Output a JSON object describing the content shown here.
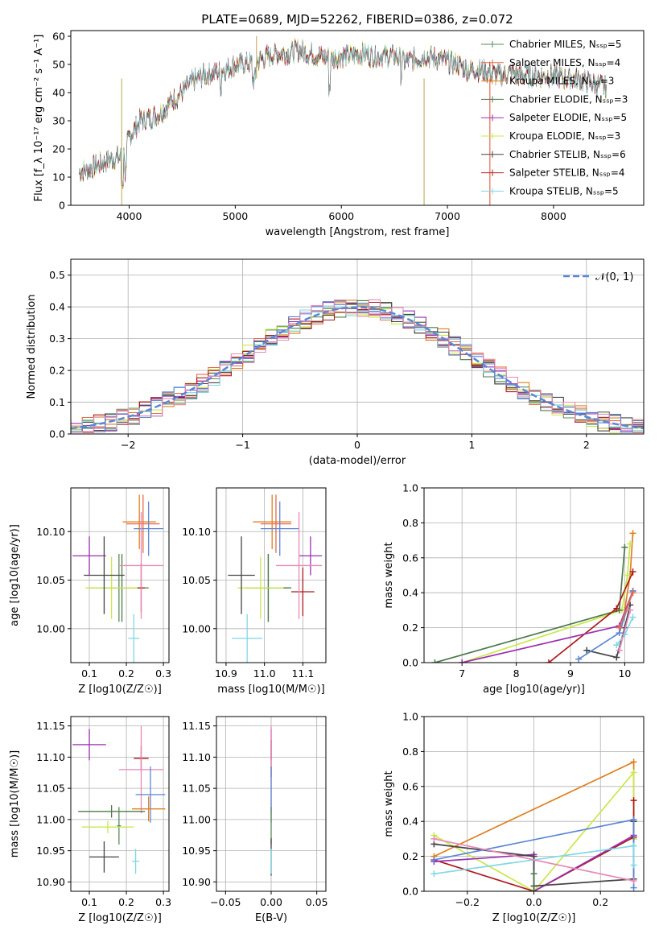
{
  "figure_title": "PLATE=0689, MJD=52262, FIBERID=0386, z=0.072",
  "colors": {
    "Chabrier MILES": "#5c8a5a",
    "Salpeter MILES": "#e8684a",
    "Kroupa MILES": "#e07f1f",
    "Chabrier ELODIE": "#4c7a4c",
    "Salpeter ELODIE": "#9b2fb0",
    "Kroupa ELODIE": "#c9e84a",
    "Chabrier STELIB": "#444444",
    "Salpeter STELIB": "#b01818",
    "Kroupa STELIB": "#7fd8e6",
    "blue": "#5b86d6",
    "pink": "#e68ab8"
  },
  "chart_data": [
    {
      "type": "line",
      "title": "PLATE=0689, MJD=52262, FIBERID=0386, z=0.072",
      "xlabel": "wavelength [Angstrom, rest frame]",
      "ylabel": "Flux [f_λ 10⁻¹⁷ erg cm⁻² s⁻¹ A⁻¹]",
      "xlim": [
        3450,
        8850
      ],
      "ylim": [
        0,
        62
      ],
      "xticks": [
        4000,
        5000,
        6000,
        7000,
        8000
      ],
      "yticks": [
        0,
        10,
        20,
        30,
        40,
        50,
        60
      ],
      "grid": false,
      "legend_position": "top-right",
      "legend": [
        "Chabrier MILES, N_SSP=5",
        "Salpeter MILES, N_SSP=4",
        "Kroupa MILES, N_SSP=3",
        "Chabrier ELODIE, N_SSP=3",
        "Salpeter ELODIE, N_SSP=5",
        "Kroupa ELODIE, N_SSP=3",
        "Chabrier STELIB, N_SSP=6",
        "Salpeter STELIB, N_SSP=4",
        "Kroupa STELIB, N_SSP=5"
      ],
      "spectrum_envelope": {
        "x": [
          3530,
          3700,
          3800,
          3900,
          3950,
          4000,
          4100,
          4200,
          4300,
          4400,
          4500,
          4600,
          4700,
          4800,
          4900,
          5000,
          5100,
          5200,
          5300,
          5400,
          5500,
          5600,
          5700,
          5800,
          5900,
          6000,
          6100,
          6200,
          6300,
          6400,
          6500,
          6600,
          6700,
          6800,
          6900,
          7000,
          7100,
          7200,
          7300,
          7400,
          7500,
          7600,
          7700,
          7800,
          7900,
          8000,
          8100,
          8200,
          8300,
          8400,
          8500
        ],
        "y": [
          12,
          14,
          16,
          17,
          18,
          24,
          30,
          31,
          33,
          37,
          40,
          44,
          46,
          47,
          48,
          50,
          50,
          51,
          53,
          54,
          54,
          55,
          54,
          53,
          52,
          53,
          53,
          54,
          53,
          53,
          53,
          51,
          52,
          53,
          52,
          51,
          50,
          48,
          48,
          47,
          46,
          47,
          46,
          46,
          46,
          46,
          45,
          45,
          44,
          43,
          42
        ]
      }
    },
    {
      "type": "histogram",
      "xlabel": "(data-model)/error",
      "ylabel": "Normed distribution",
      "xlim": [
        -2.5,
        2.5
      ],
      "ylim": [
        0,
        0.55
      ],
      "xticks": [
        -2,
        -1,
        0,
        1,
        2
      ],
      "yticks": [
        0.0,
        0.1,
        0.2,
        0.3,
        0.4,
        0.5
      ],
      "grid": true,
      "legend": [
        "𝒩(0, 1)"
      ],
      "legend_position": "top-right",
      "reference_curve": "normal(0,1) pdf"
    },
    {
      "type": "scatter",
      "xlabel": "Z [log10(Z/Z☉)]",
      "ylabel": "age  [log10(age/yr)]",
      "xlim": [
        0.05,
        0.315
      ],
      "ylim": [
        9.965,
        10.145
      ],
      "xticks": [
        0.1,
        0.2,
        0.3
      ],
      "yticks": [
        10.0,
        10.05,
        10.1
      ],
      "grid": true,
      "points": [
        {
          "model": "Chabrier MILES",
          "x": 0.18,
          "y": 10.042,
          "xerr": 0.08,
          "yerr": 0.035
        },
        {
          "model": "Salpeter MILES",
          "x": 0.245,
          "y": 10.108,
          "xerr": 0.045,
          "yerr": 0.03
        },
        {
          "model": "Kroupa MILES",
          "x": 0.235,
          "y": 10.11,
          "xerr": 0.045,
          "yerr": 0.028
        },
        {
          "model": "Chabrier ELODIE",
          "x": 0.188,
          "y": 10.042,
          "xerr": 0.06,
          "yerr": 0.035
        },
        {
          "model": "Salpeter ELODIE",
          "x": 0.1,
          "y": 10.075,
          "xerr": 0.045,
          "yerr": 0.02
        },
        {
          "model": "Kroupa ELODIE",
          "x": 0.16,
          "y": 10.042,
          "xerr": 0.07,
          "yerr": 0.032
        },
        {
          "model": "Chabrier STELIB",
          "x": 0.14,
          "y": 10.055,
          "xerr": 0.055,
          "yerr": 0.04
        },
        {
          "model": "Salpeter STELIB",
          "x": 0.24,
          "y": 10.042,
          "xerr": 0.01,
          "yerr": 0.025
        },
        {
          "model": "Kroupa STELIB",
          "x": 0.22,
          "y": 9.99,
          "xerr": 0.015,
          "yerr": 0.025
        },
        {
          "model": "blue",
          "x": 0.26,
          "y": 10.103,
          "xerr": 0.04,
          "yerr": 0.028
        },
        {
          "model": "pink",
          "x": 0.24,
          "y": 10.065,
          "xerr": 0.06,
          "yerr": 0.055
        }
      ]
    },
    {
      "type": "scatter",
      "xlabel": "mass [log10(M/M☉)]",
      "ylabel": "",
      "xlim": [
        10.875,
        11.16
      ],
      "ylim": [
        9.965,
        10.145
      ],
      "xticks": [
        10.9,
        11.0,
        11.1
      ],
      "yticks": [
        10.0,
        10.05,
        10.1
      ],
      "grid": true,
      "points": [
        {
          "model": "Chabrier MILES",
          "x": 11.01,
          "y": 10.042,
          "xerr": 0.05,
          "yerr": 0.035
        },
        {
          "model": "Salpeter MILES",
          "x": 11.03,
          "y": 10.108,
          "xerr": 0.04,
          "yerr": 0.03
        },
        {
          "model": "Kroupa MILES",
          "x": 11.02,
          "y": 10.11,
          "xerr": 0.05,
          "yerr": 0.028
        },
        {
          "model": "Chabrier ELODIE",
          "x": 11.01,
          "y": 10.042,
          "xerr": 0.06,
          "yerr": 0.035
        },
        {
          "model": "Salpeter ELODIE",
          "x": 11.12,
          "y": 10.075,
          "xerr": 0.03,
          "yerr": 0.02
        },
        {
          "model": "Kroupa ELODIE",
          "x": 10.99,
          "y": 10.042,
          "xerr": 0.06,
          "yerr": 0.032
        },
        {
          "model": "Chabrier STELIB",
          "x": 10.94,
          "y": 10.055,
          "xerr": 0.035,
          "yerr": 0.04
        },
        {
          "model": "Salpeter STELIB",
          "x": 11.1,
          "y": 10.038,
          "xerr": 0.03,
          "yerr": 0.025
        },
        {
          "model": "Kroupa STELIB",
          "x": 10.955,
          "y": 9.99,
          "xerr": 0.04,
          "yerr": 0.025
        },
        {
          "model": "blue",
          "x": 11.04,
          "y": 10.103,
          "xerr": 0.05,
          "yerr": 0.028
        },
        {
          "model": "pink",
          "x": 11.09,
          "y": 10.065,
          "xerr": 0.06,
          "yerr": 0.055
        }
      ]
    },
    {
      "type": "line",
      "xlabel": "age  [log10(age/yr)]",
      "ylabel": "mass weight",
      "xlim": [
        6.3,
        10.35
      ],
      "ylim": [
        0,
        1
      ],
      "xticks": [
        7,
        8,
        9,
        10
      ],
      "yticks": [
        0.0,
        0.2,
        0.4,
        0.6,
        0.8,
        1.0
      ],
      "grid": true,
      "series": [
        {
          "color": "Kroupa MILES",
          "x": [
            10.0,
            10.1,
            10.15
          ],
          "y": [
            0.3,
            0.5,
            0.74
          ]
        },
        {
          "color": "Kroupa ELODIE",
          "x": [
            7.0,
            9.95,
            10.05,
            10.1
          ],
          "y": [
            0.0,
            0.3,
            0.5,
            0.68
          ]
        },
        {
          "color": "Chabrier ELODIE",
          "x": [
            6.5,
            9.9,
            10.0
          ],
          "y": [
            0.0,
            0.3,
            0.66
          ]
        },
        {
          "color": "Salpeter STELIB",
          "x": [
            8.6,
            9.85,
            10.15
          ],
          "y": [
            0.0,
            0.31,
            0.52
          ]
        },
        {
          "color": "Salpeter ELODIE",
          "x": [
            7.0,
            9.9,
            10.15
          ],
          "y": [
            0.0,
            0.21,
            0.41
          ]
        },
        {
          "color": "Chabrier STELIB",
          "x": [
            9.3,
            9.85,
            10.0,
            10.1
          ],
          "y": [
            0.07,
            0.03,
            0.2,
            0.33
          ]
        },
        {
          "color": "blue",
          "x": [
            9.15,
            9.9,
            10.15
          ],
          "y": [
            0.02,
            0.17,
            0.41
          ]
        },
        {
          "color": "Kroupa STELIB",
          "x": [
            9.85,
            10.0,
            10.15
          ],
          "y": [
            0.1,
            0.16,
            0.26
          ]
        },
        {
          "color": "pink",
          "x": [
            9.9,
            10.1
          ],
          "y": [
            0.07,
            0.3
          ]
        },
        {
          "color": "Salpeter MILES",
          "x": [
            9.9,
            10.15
          ],
          "y": [
            0.2,
            0.4
          ]
        }
      ]
    },
    {
      "type": "scatter",
      "xlabel": "Z [log10(Z/Z☉)]",
      "ylabel": "mass [log10(M/M☉)]",
      "xlim": [
        0.05,
        0.315
      ],
      "ylim": [
        10.885,
        11.165
      ],
      "xticks": [
        0.1,
        0.2,
        0.3
      ],
      "yticks": [
        10.9,
        10.95,
        11.0,
        11.05,
        11.1,
        11.15
      ],
      "grid": true,
      "points": [
        {
          "model": "Salpeter ELODIE",
          "x": 0.1,
          "y": 11.12,
          "xerr": 0.045,
          "yerr": 0.025
        },
        {
          "model": "Salpeter STELIB",
          "x": 0.24,
          "y": 11.098,
          "xerr": 0.02,
          "yerr": 0.02
        },
        {
          "model": "pink",
          "x": 0.24,
          "y": 11.08,
          "xerr": 0.06,
          "yerr": 0.07
        },
        {
          "model": "blue",
          "x": 0.265,
          "y": 11.04,
          "xerr": 0.04,
          "yerr": 0.045
        },
        {
          "model": "Kroupa MILES",
          "x": 0.26,
          "y": 11.017,
          "xerr": 0.045,
          "yerr": 0.02
        },
        {
          "model": "Chabrier ELODIE",
          "x": 0.16,
          "y": 11.013,
          "xerr": 0.09,
          "yerr": 0.01
        },
        {
          "model": "Chabrier MILES",
          "x": 0.18,
          "y": 10.99,
          "xerr": 0.005,
          "yerr": 0.03
        },
        {
          "model": "Kroupa ELODIE",
          "x": 0.15,
          "y": 10.988,
          "xerr": 0.07,
          "yerr": 0.01
        },
        {
          "model": "Chabrier STELIB",
          "x": 0.14,
          "y": 10.94,
          "xerr": 0.04,
          "yerr": 0.025
        },
        {
          "model": "Kroupa STELIB",
          "x": 0.225,
          "y": 10.933,
          "xerr": 0.01,
          "yerr": 0.02
        }
      ]
    },
    {
      "type": "scatter",
      "xlabel": "E(B-V)",
      "ylabel": "",
      "xlim": [
        -0.06,
        0.06
      ],
      "ylim": [
        10.885,
        11.165
      ],
      "xticks": [
        -0.05,
        0.0,
        0.05
      ],
      "yticks": [
        10.9,
        10.95,
        11.0,
        11.05,
        11.1,
        11.15
      ],
      "grid": true,
      "points": [
        {
          "model": "Salpeter ELODIE",
          "x": 0.0,
          "y": 11.12,
          "xerr": 0.0,
          "yerr": 0.025
        },
        {
          "model": "Salpeter STELIB",
          "x": 0.0,
          "y": 11.098,
          "xerr": 0.0,
          "yerr": 0.03
        },
        {
          "model": "pink",
          "x": 0.0,
          "y": 11.08,
          "xerr": 0.0,
          "yerr": 0.07
        },
        {
          "model": "blue",
          "x": 0.0,
          "y": 11.04,
          "xerr": 0.0,
          "yerr": 0.045
        },
        {
          "model": "Chabrier MILES",
          "x": 0.0,
          "y": 10.99,
          "xerr": 0.0,
          "yerr": 0.03
        },
        {
          "model": "Chabrier STELIB",
          "x": 0.0,
          "y": 10.94,
          "xerr": 0.0,
          "yerr": 0.03
        },
        {
          "model": "Kroupa STELIB",
          "x": 0.0,
          "y": 10.933,
          "xerr": 0.0,
          "yerr": 0.02
        }
      ]
    },
    {
      "type": "line",
      "xlabel": "Z [log10(Z/Z☉)]",
      "ylabel": "mass weight",
      "xlim": [
        -0.33,
        0.33
      ],
      "ylim": [
        0,
        1
      ],
      "xticks": [
        -0.2,
        0.0,
        0.2
      ],
      "yticks": [
        0.0,
        0.2,
        0.4,
        0.6,
        0.8,
        1.0
      ],
      "grid": true,
      "series": [
        {
          "color": "Kroupa MILES",
          "x": [
            -0.3,
            0.3,
            0.3
          ],
          "y": [
            0.2,
            0.74,
            0.3
          ]
        },
        {
          "color": "Kroupa ELODIE",
          "x": [
            -0.3,
            0.0,
            0.3,
            0.3
          ],
          "y": [
            0.32,
            0.0,
            0.68,
            0.3
          ]
        },
        {
          "color": "Salpeter STELIB",
          "x": [
            -0.3,
            0.0,
            0.3,
            0.3
          ],
          "y": [
            0.18,
            0.0,
            0.31,
            0.52
          ]
        },
        {
          "color": "Salpeter ELODIE",
          "x": [
            -0.3,
            0.0,
            0.0,
            0.3
          ],
          "y": [
            0.17,
            0.21,
            0.0,
            0.32
          ]
        },
        {
          "color": "Chabrier STELIB",
          "x": [
            -0.3,
            0.0,
            0.0,
            0.3,
            0.3
          ],
          "y": [
            0.27,
            0.2,
            0.03,
            0.07,
            0.4
          ]
        },
        {
          "color": "blue",
          "x": [
            -0.3,
            0.3,
            0.3
          ],
          "y": [
            0.18,
            0.41,
            0.02
          ]
        },
        {
          "color": "Kroupa STELIB",
          "x": [
            -0.3,
            0.3,
            0.3
          ],
          "y": [
            0.1,
            0.26,
            0.15
          ]
        },
        {
          "color": "pink",
          "x": [
            -0.3,
            0.3
          ],
          "y": [
            0.3,
            0.06
          ]
        },
        {
          "color": "Chabrier ELODIE",
          "x": [
            0.0,
            0.0
          ],
          "y": [
            0.0,
            0.1
          ]
        }
      ]
    }
  ]
}
